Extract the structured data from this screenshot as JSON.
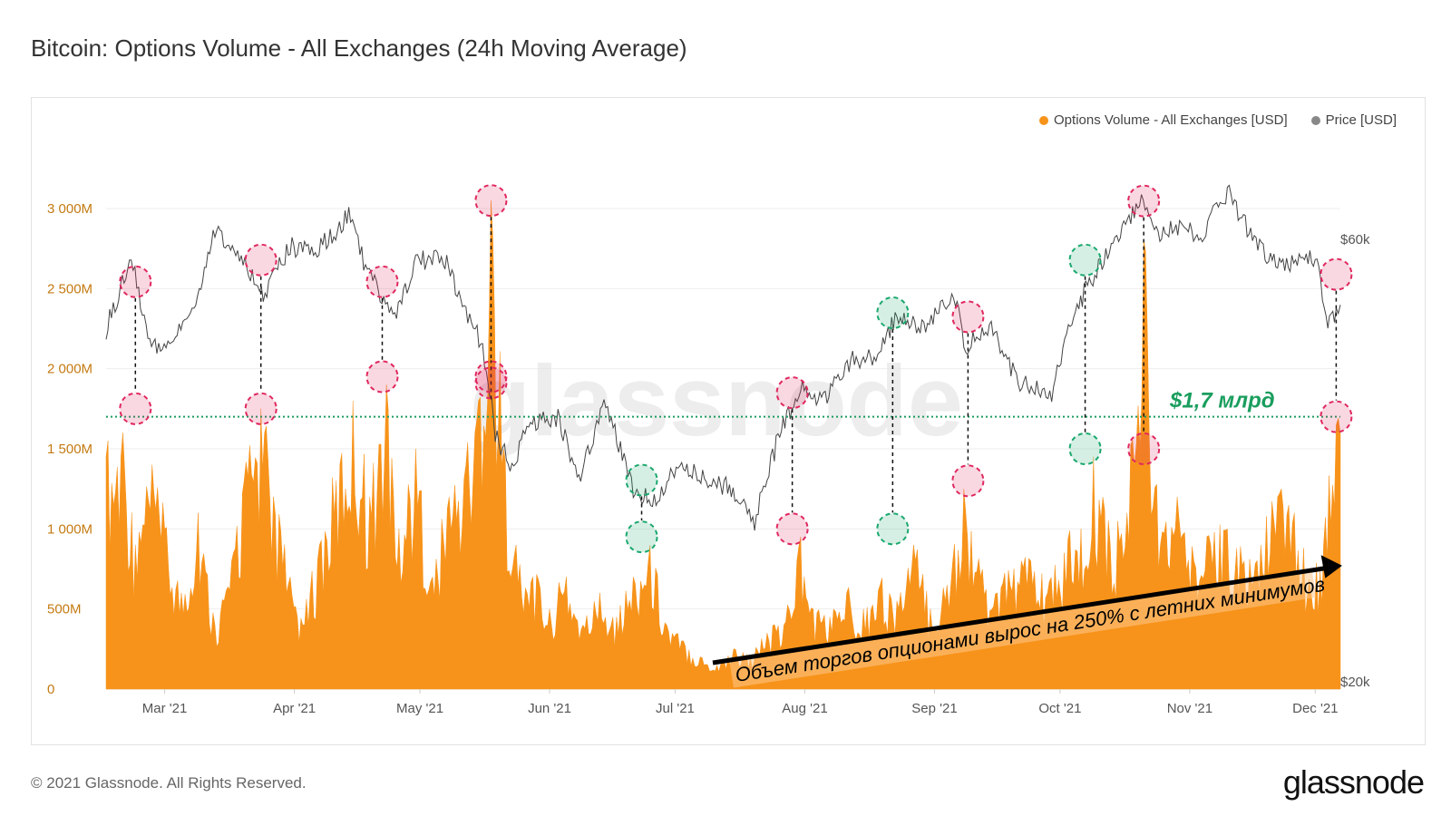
{
  "title": "Bitcoin: Options Volume - All Exchanges (24h Moving Average)",
  "footer": {
    "copyright": "© 2021 Glassnode. All Rights Reserved.",
    "logo": "glassnode",
    "watermark": "glassnode"
  },
  "colors": {
    "volume": "#f7931a",
    "price": "#444444",
    "red_marker": "#e0285e",
    "green_marker": "#1aa86e",
    "threshold": "#1a9e5e"
  },
  "legend": [
    {
      "label": "Options Volume - All Exchanges [USD]",
      "color": "#f7931a"
    },
    {
      "label": "Price [USD]",
      "color": "#888888"
    }
  ],
  "chart_data": {
    "type": "area",
    "title": "Bitcoin: Options Volume - All Exchanges (24h Moving Average)",
    "x_ticks": [
      "Mar '21",
      "Apr '21",
      "May '21",
      "Jun '21",
      "Jul '21",
      "Aug '21",
      "Sep '21",
      "Oct '21",
      "Nov '21",
      "Dec '21"
    ],
    "y_left_ticks": [
      "0",
      "500M",
      "1 000M",
      "1 500M",
      "2 000M",
      "2 500M",
      "3 000M"
    ],
    "y_left_range": [
      0,
      3000000000
    ],
    "y_right_ticks": [
      "$20k",
      "$60k"
    ],
    "y_right_scale": "log",
    "y_right_range": [
      20000,
      69000
    ],
    "x_range": [
      "2021-02-15",
      "2021-12-07"
    ],
    "series": [
      {
        "name": "Options Volume - All Exchanges [USD]",
        "unit": "USD",
        "points": [
          [
            "2021-02-15",
            1450000000
          ],
          [
            "2021-02-19",
            1600000000
          ],
          [
            "2021-02-22",
            900000000
          ],
          [
            "2021-02-26",
            1400000000
          ],
          [
            "2021-03-01",
            1000000000
          ],
          [
            "2021-03-05",
            600000000
          ],
          [
            "2021-03-09",
            1100000000
          ],
          [
            "2021-03-13",
            400000000
          ],
          [
            "2021-03-17",
            800000000
          ],
          [
            "2021-03-20",
            1300000000
          ],
          [
            "2021-03-24",
            1750000000
          ],
          [
            "2021-03-27",
            1200000000
          ],
          [
            "2021-03-31",
            700000000
          ],
          [
            "2021-04-03",
            400000000
          ],
          [
            "2021-04-07",
            900000000
          ],
          [
            "2021-04-11",
            1300000000
          ],
          [
            "2021-04-15",
            1800000000
          ],
          [
            "2021-04-19",
            1200000000
          ],
          [
            "2021-04-23",
            1900000000
          ],
          [
            "2021-04-26",
            1000000000
          ],
          [
            "2021-04-30",
            1500000000
          ],
          [
            "2021-05-04",
            700000000
          ],
          [
            "2021-05-08",
            1200000000
          ],
          [
            "2021-05-12",
            1400000000
          ],
          [
            "2021-05-15",
            1800000000
          ],
          [
            "2021-05-18",
            3050000000
          ],
          [
            "2021-05-21",
            1500000000
          ],
          [
            "2021-05-24",
            900000000
          ],
          [
            "2021-05-28",
            700000000
          ],
          [
            "2021-06-01",
            500000000
          ],
          [
            "2021-06-05",
            700000000
          ],
          [
            "2021-06-09",
            400000000
          ],
          [
            "2021-06-13",
            600000000
          ],
          [
            "2021-06-17",
            450000000
          ],
          [
            "2021-06-21",
            700000000
          ],
          [
            "2021-06-25",
            900000000
          ],
          [
            "2021-06-29",
            400000000
          ],
          [
            "2021-07-03",
            300000000
          ],
          [
            "2021-07-07",
            200000000
          ],
          [
            "2021-07-11",
            150000000
          ],
          [
            "2021-07-15",
            250000000
          ],
          [
            "2021-07-19",
            200000000
          ],
          [
            "2021-07-23",
            350000000
          ],
          [
            "2021-07-27",
            400000000
          ],
          [
            "2021-07-31",
            950000000
          ],
          [
            "2021-08-03",
            500000000
          ],
          [
            "2021-08-07",
            450000000
          ],
          [
            "2021-08-11",
            600000000
          ],
          [
            "2021-08-15",
            500000000
          ],
          [
            "2021-08-19",
            650000000
          ],
          [
            "2021-08-23",
            550000000
          ],
          [
            "2021-08-27",
            900000000
          ],
          [
            "2021-08-31",
            500000000
          ],
          [
            "2021-09-04",
            650000000
          ],
          [
            "2021-09-08",
            1250000000
          ],
          [
            "2021-09-12",
            700000000
          ],
          [
            "2021-09-16",
            600000000
          ],
          [
            "2021-09-20",
            750000000
          ],
          [
            "2021-09-24",
            800000000
          ],
          [
            "2021-09-28",
            600000000
          ],
          [
            "2021-10-02",
            850000000
          ],
          [
            "2021-10-06",
            1000000000
          ],
          [
            "2021-10-09",
            1450000000
          ],
          [
            "2021-10-13",
            900000000
          ],
          [
            "2021-10-17",
            1100000000
          ],
          [
            "2021-10-21",
            2800000000
          ],
          [
            "2021-10-25",
            900000000
          ],
          [
            "2021-10-29",
            1200000000
          ],
          [
            "2021-11-02",
            800000000
          ],
          [
            "2021-11-06",
            900000000
          ],
          [
            "2021-11-10",
            1000000000
          ],
          [
            "2021-11-14",
            800000000
          ],
          [
            "2021-11-18",
            900000000
          ],
          [
            "2021-11-22",
            1200000000
          ],
          [
            "2021-11-26",
            1100000000
          ],
          [
            "2021-11-30",
            600000000
          ],
          [
            "2021-12-03",
            900000000
          ],
          [
            "2021-12-06",
            1650000000
          ],
          [
            "2021-12-07",
            1600000000
          ]
        ]
      },
      {
        "name": "Price [USD]",
        "unit": "USD",
        "points": [
          [
            "2021-02-15",
            48000
          ],
          [
            "2021-02-21",
            57000
          ],
          [
            "2021-02-25",
            47000
          ],
          [
            "2021-02-28",
            45000
          ],
          [
            "2021-03-04",
            48000
          ],
          [
            "2021-03-08",
            51000
          ],
          [
            "2021-03-13",
            61000
          ],
          [
            "2021-03-18",
            58000
          ],
          [
            "2021-03-25",
            52000
          ],
          [
            "2021-03-31",
            59000
          ],
          [
            "2021-04-06",
            58000
          ],
          [
            "2021-04-14",
            63500
          ],
          [
            "2021-04-18",
            56000
          ],
          [
            "2021-04-25",
            49000
          ],
          [
            "2021-04-30",
            57000
          ],
          [
            "2021-05-07",
            57000
          ],
          [
            "2021-05-12",
            50000
          ],
          [
            "2021-05-16",
            46000
          ],
          [
            "2021-05-19",
            37000
          ],
          [
            "2021-05-23",
            34000
          ],
          [
            "2021-05-27",
            38000
          ],
          [
            "2021-06-03",
            38500
          ],
          [
            "2021-06-08",
            33000
          ],
          [
            "2021-06-14",
            40000
          ],
          [
            "2021-06-21",
            32000
          ],
          [
            "2021-06-26",
            31500
          ],
          [
            "2021-07-03",
            34500
          ],
          [
            "2021-07-08",
            33000
          ],
          [
            "2021-07-14",
            32500
          ],
          [
            "2021-07-20",
            29800
          ],
          [
            "2021-07-26",
            37000
          ],
          [
            "2021-07-31",
            41500
          ],
          [
            "2021-08-05",
            40000
          ],
          [
            "2021-08-12",
            44500
          ],
          [
            "2021-08-18",
            45000
          ],
          [
            "2021-08-23",
            49500
          ],
          [
            "2021-08-29",
            48000
          ],
          [
            "2021-09-06",
            52000
          ],
          [
            "2021-09-08",
            46000
          ],
          [
            "2021-09-15",
            48000
          ],
          [
            "2021-09-21",
            42000
          ],
          [
            "2021-09-29",
            41000
          ],
          [
            "2021-10-03",
            48000
          ],
          [
            "2021-10-08",
            54000
          ],
          [
            "2021-10-15",
            60000
          ],
          [
            "2021-10-20",
            66000
          ],
          [
            "2021-10-24",
            61000
          ],
          [
            "2021-10-30",
            61500
          ],
          [
            "2021-11-04",
            61000
          ],
          [
            "2021-11-10",
            67500
          ],
          [
            "2021-11-16",
            60000
          ],
          [
            "2021-11-22",
            56000
          ],
          [
            "2021-11-28",
            57000
          ],
          [
            "2021-12-01",
            57500
          ],
          [
            "2021-12-04",
            49000
          ],
          [
            "2021-12-06",
            50000
          ],
          [
            "2021-12-07",
            51000
          ]
        ]
      }
    ],
    "threshold": {
      "value": 1700000000,
      "label": "$1,7 млрд"
    },
    "trend_annotation": "Объем торгов опционами вырос на 250% с летних минимумов",
    "markers": [
      {
        "date": "2021-02-22",
        "volume": 1750000000,
        "price": 54000,
        "color": "red"
      },
      {
        "date": "2021-03-24",
        "volume": 1750000000,
        "price": 57000,
        "color": "red"
      },
      {
        "date": "2021-04-22",
        "volume": 1950000000,
        "price": 54000,
        "color": "red"
      },
      {
        "date": "2021-05-18",
        "volume": 3050000000,
        "volume_marker": 1950000000,
        "price": 42000,
        "color": "red"
      },
      {
        "date": "2021-06-23",
        "volume": 950000000,
        "price": 33000,
        "color": "green"
      },
      {
        "date": "2021-07-29",
        "volume": 1000000000,
        "price": 41000,
        "color": "red"
      },
      {
        "date": "2021-08-22",
        "volume": 1000000000,
        "price": 50000,
        "color": "green"
      },
      {
        "date": "2021-09-09",
        "volume": 1300000000,
        "price": 49500,
        "color": "red"
      },
      {
        "date": "2021-10-07",
        "volume": 1500000000,
        "price": 57000,
        "color": "green"
      },
      {
        "date": "2021-10-21",
        "volume": 1500000000,
        "price": 66000,
        "color": "red"
      },
      {
        "date": "2021-12-06",
        "volume": 1700000000,
        "price": 55000,
        "color": "red"
      }
    ]
  }
}
